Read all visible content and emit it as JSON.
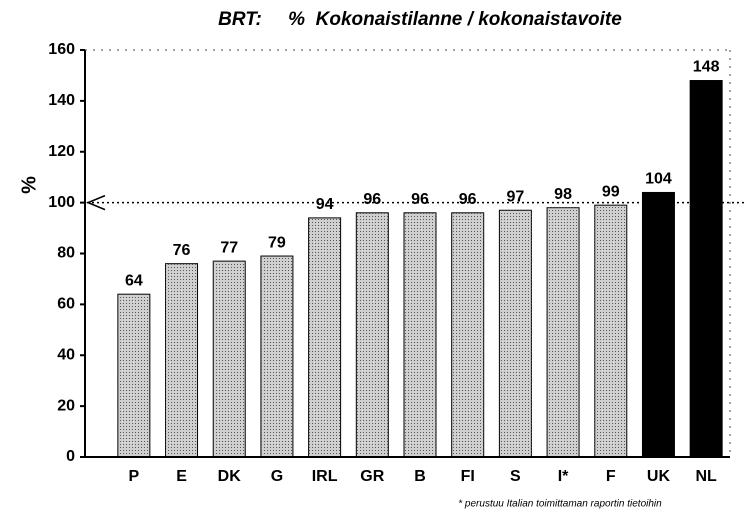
{
  "chart_data": {
    "type": "bar",
    "title": "BRT:     %  Kokonaistilanne / kokonaistavoite",
    "y_label": "%",
    "footnote": "* perustuu Italian toimittaman raportin tietoihin",
    "categories": [
      "P",
      "E",
      "DK",
      "G",
      "IRL",
      "GR",
      "B",
      "FI",
      "S",
      "I*",
      "F",
      "UK",
      "NL"
    ],
    "values": [
      64,
      76,
      77,
      79,
      94,
      96,
      96,
      96,
      97,
      98,
      99,
      104,
      148
    ],
    "colors": [
      "#d0d0d0",
      "#d0d0d0",
      "#d0d0d0",
      "#d0d0d0",
      "#d0d0d0",
      "#d0d0d0",
      "#d0d0d0",
      "#d0d0d0",
      "#d0d0d0",
      "#d0d0d0",
      "#d0d0d0",
      "#000000",
      "#000000"
    ],
    "reference_line": 100,
    "ylim": [
      0,
      160
    ],
    "yticks": [
      0,
      20,
      40,
      60,
      80,
      100,
      120,
      140,
      160
    ]
  }
}
